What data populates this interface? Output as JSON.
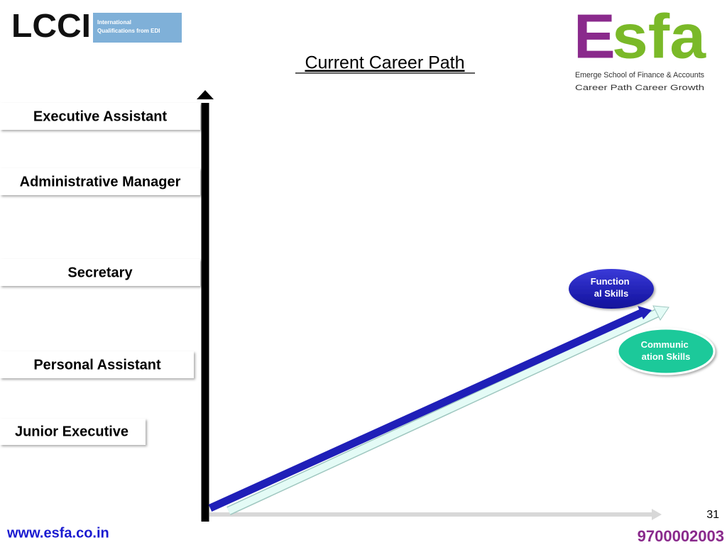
{
  "header": {
    "lcci": {
      "name": "LCCI",
      "tag_lines": [
        "International",
        "Qualifications from EDI"
      ]
    },
    "esfa": {
      "first": "E",
      "rest": "sfa",
      "school": "Emerge School of Finance & Accounts",
      "motto": "Career Path Career Growth"
    },
    "title": "Current Career Path"
  },
  "levels": [
    "Executive Assistant",
    "Administrative Manager",
    "Secretary",
    "Personal Assistant",
    "Junior Executive"
  ],
  "bubbles": [
    {
      "lines": [
        "Function",
        "al Skills"
      ]
    },
    {
      "lines": [
        "Communic",
        "ation Skills"
      ]
    }
  ],
  "footer": {
    "page": "31",
    "website": "www.esfa.co.in",
    "phone": "9700002003"
  }
}
